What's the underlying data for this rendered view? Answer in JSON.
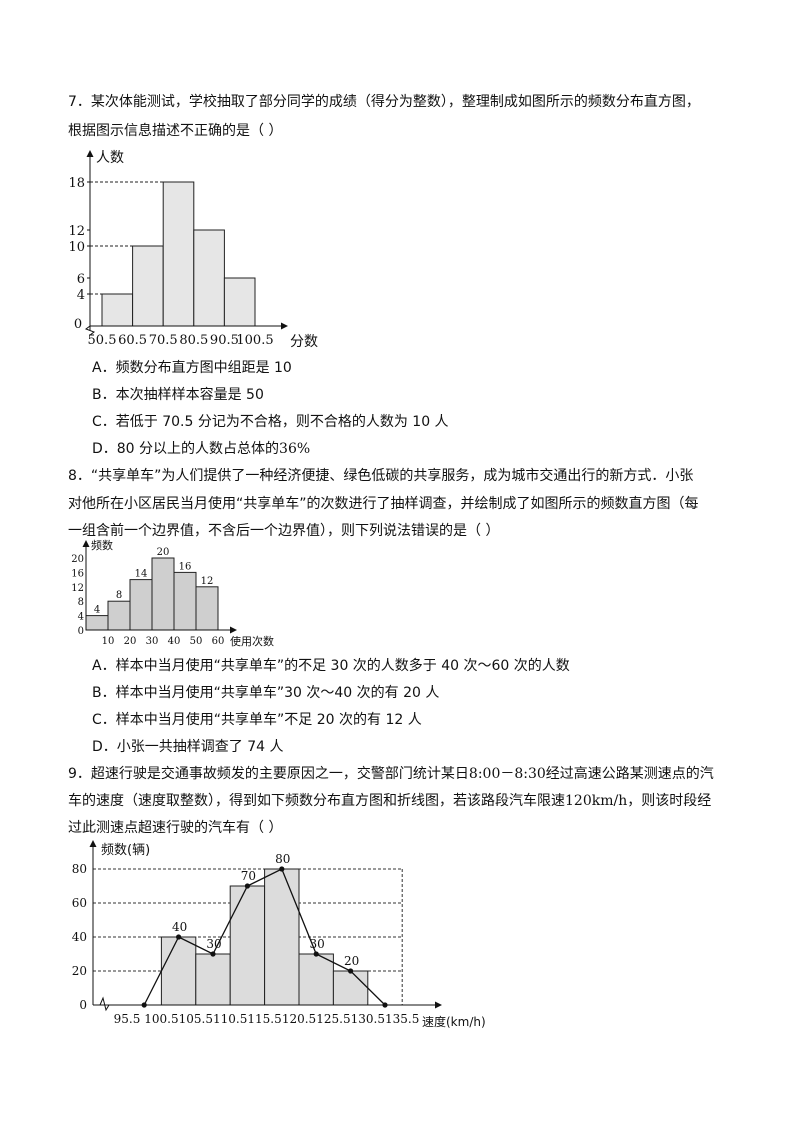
{
  "q7": {
    "stem_line1": "7．某次体能测试，学校抽取了部分同学的成绩（得分为整数），整理制成如图所示的频数分布直方图，",
    "stem_line2": "根据图示信息描述不正确的是（    ）",
    "options": [
      "A．频数分布直方图中组距是 10",
      "B．本次抽样样本容量是 50",
      "C．若低于 70.5 分记为不合格，则不合格的人数为 10 人",
      "D．80 分以上的人数占总体的"
    ],
    "option_d_value": "36%"
  },
  "q8": {
    "stem_line1": "8．“共享单车”为人们提供了一种经济便捷、绿色低碳的共享服务，成为城市交通出行的新方式．小张",
    "stem_line2": "对他所在小区居民当月使用“共享单车”的次数进行了抽样调查，并绘制成了如图所示的频数直方图（每",
    "stem_line3": "一组含前一个边界值，不含后一个边界值），则下列说法错误的是（    ）",
    "options": [
      "A．样本中当月使用“共享单车”的不足 30 次的人数多于 40 次～60 次的人数",
      "B．样本中当月使用“共享单车”30 次～40 次的有 20 人",
      "C．样本中当月使用“共享单车”不足 20 次的有 12 人",
      "D．小张一共抽样调查了 74 人"
    ]
  },
  "q9": {
    "stem_line1_a": "9．超速行驶是交通事故频发的主要原因之一，交警部门统计某日",
    "time_range": "8:00－8:30",
    "stem_line1_b": "经过高速公路某测速点的汽",
    "stem_line2_a": "车的速度（速度取整数），得到如下频数分布直方图和折线图，若该路段汽车限速",
    "speed_limit": "120km/h",
    "stem_line2_b": "，则该时段经",
    "stem_line3": "过此测速点超速行驶的汽车有（    ）"
  },
  "chart_data": [
    {
      "type": "bar",
      "ylabel": "人数",
      "xlabel": "分数",
      "x_ticks": [
        "50.5",
        "60.5",
        "70.5",
        "80.5",
        "90.5",
        "100.5"
      ],
      "values": [
        4,
        10,
        18,
        12,
        6
      ],
      "y_ticks": [
        "0",
        "4",
        "6",
        "10",
        "12",
        "18"
      ],
      "ylim": [
        0,
        18
      ],
      "bar_color": "#e6e6e6",
      "guide_lines": "dashed"
    },
    {
      "type": "bar",
      "ylabel": "频数",
      "xlabel": "使用次数",
      "x_ticks": [
        "10",
        "20",
        "30",
        "40",
        "50",
        "60"
      ],
      "values": [
        4,
        8,
        14,
        20,
        16,
        12
      ],
      "value_labels": [
        "4",
        "8",
        "14",
        "20",
        "16",
        "12"
      ],
      "y_ticks": [
        "0",
        "4",
        "8",
        "12",
        "16",
        "20"
      ],
      "ylim": [
        0,
        20
      ],
      "bar_color": "#cfcfcf"
    },
    {
      "type": "bar",
      "ylabel": "频数(辆)",
      "xlabel": "速度(km/h)",
      "x_ticks": [
        "95.5",
        "100.5",
        "105.5",
        "110.5",
        "115.5",
        "120.5",
        "125.5",
        "130.5",
        "135.5"
      ],
      "values": [
        40,
        30,
        70,
        80,
        30,
        20
      ],
      "value_labels": [
        "40",
        "30",
        "70",
        "80",
        "30",
        "20"
      ],
      "polygon_y": [
        0,
        40,
        30,
        70,
        80,
        30,
        20,
        0
      ],
      "y_ticks": [
        "0",
        "20",
        "40",
        "60",
        "80"
      ],
      "ylim": [
        0,
        80
      ],
      "bar_color": "#dcdcdc"
    }
  ]
}
